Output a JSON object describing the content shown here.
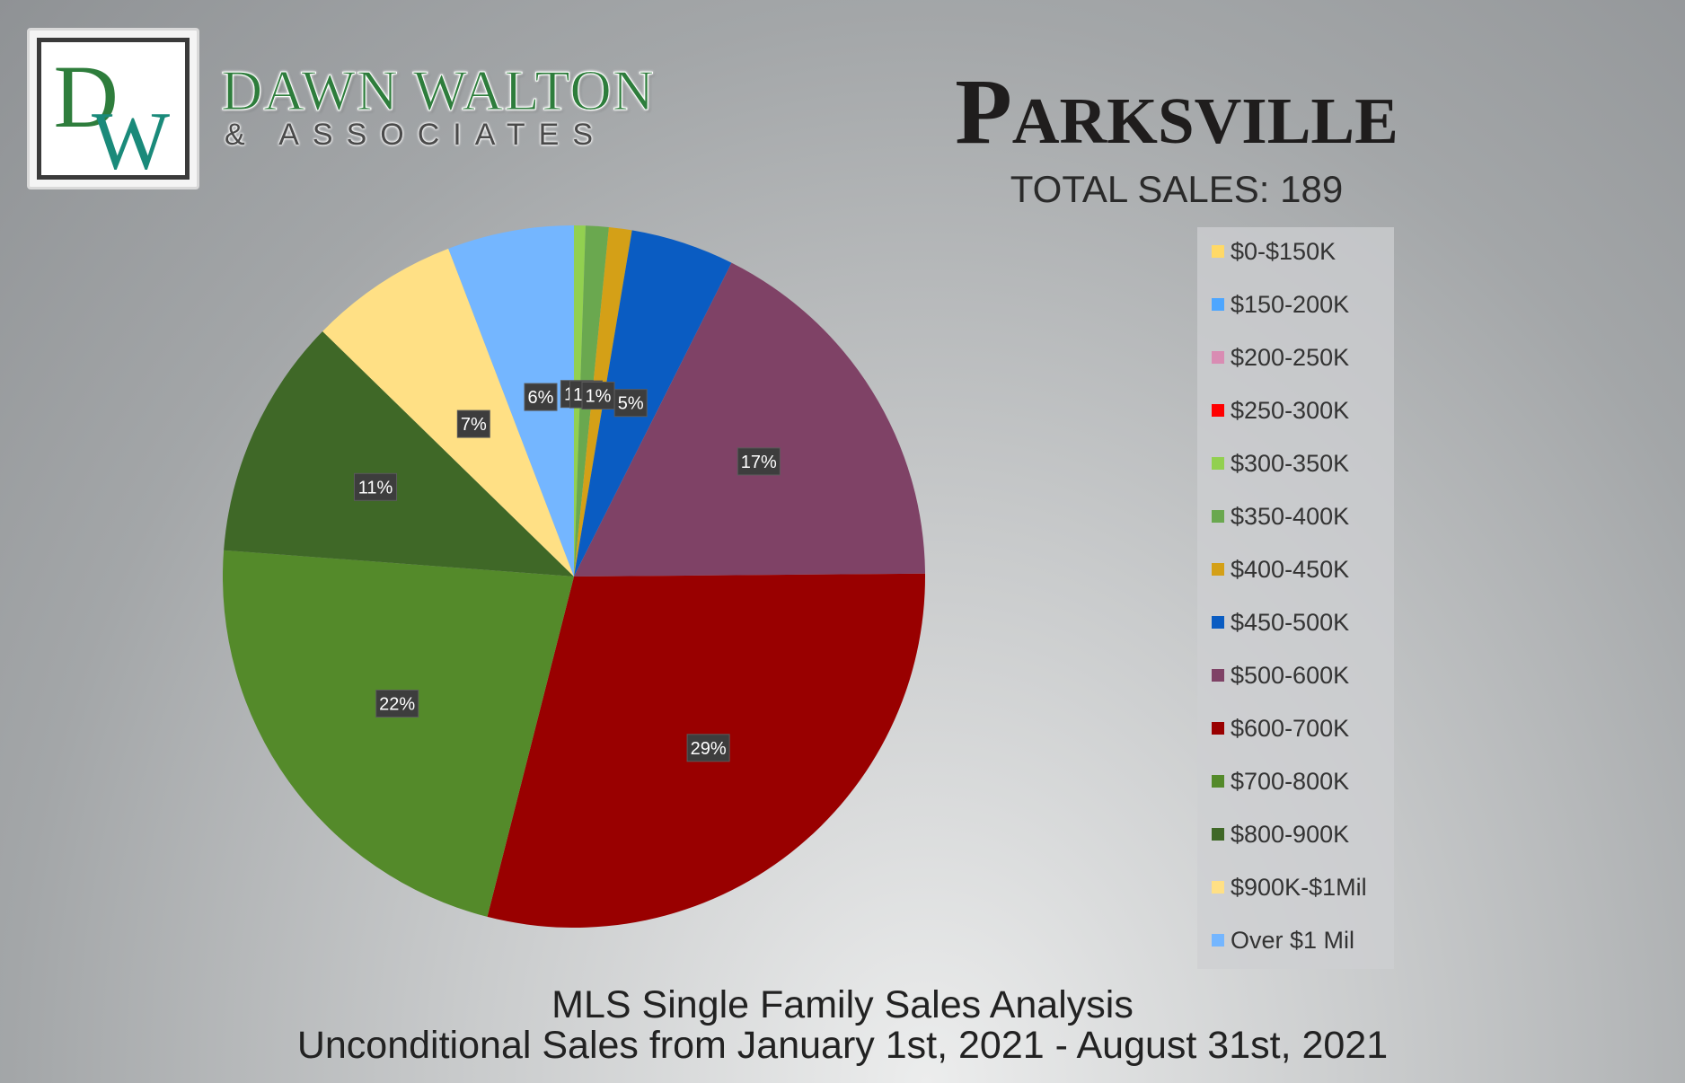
{
  "brand": {
    "monogram_d": "D",
    "monogram_w": "W",
    "name": "DAWN WALTON",
    "sub": "& ASSOCIATES",
    "colors": {
      "green": "#2e7d3c",
      "teal": "#1a8a7a"
    }
  },
  "header": {
    "title": "Parksville",
    "total_sales": "TOTAL SALES: 189"
  },
  "footer": {
    "line1": "MLS Single Family Sales Analysis",
    "line2": "Unconditional Sales from January 1st, 2021 - August 31st, 2021"
  },
  "legend": {
    "placement": "right",
    "items": [
      {
        "label": "$0-$150K",
        "color": "#ffd966"
      },
      {
        "label": "$150-200K",
        "color": "#4da6ff"
      },
      {
        "label": "$200-250K",
        "color": "#d98cb3"
      },
      {
        "label": "$250-300K",
        "color": "#ff0000"
      },
      {
        "label": "$300-350K",
        "color": "#92d050"
      },
      {
        "label": "$350-400K",
        "color": "#6aa84f"
      },
      {
        "label": "$400-450K",
        "color": "#d4a017"
      },
      {
        "label": "$450-500K",
        "color": "#0a5cc2"
      },
      {
        "label": "$500-600K",
        "color": "#7f4266"
      },
      {
        "label": "$600-700K",
        "color": "#990000"
      },
      {
        "label": "$700-800K",
        "color": "#548a2a"
      },
      {
        "label": "$800-900K",
        "color": "#3f6827"
      },
      {
        "label": "$900K-$1Mil",
        "color": "#ffe085"
      },
      {
        "label": "Over $1 Mil",
        "color": "#74b6ff"
      }
    ]
  },
  "chart_data": {
    "type": "pie",
    "title": "",
    "start_angle_deg": 0,
    "direction": "clockwise",
    "categories": [
      "$0-$150K",
      "$150-200K",
      "$200-250K",
      "$250-300K",
      "$300-350K",
      "$350-400K",
      "$400-450K",
      "$450-500K",
      "$500-600K",
      "$600-700K",
      "$700-800K",
      "$800-900K",
      "$900K-$1Mil",
      "Over $1 Mil"
    ],
    "values": [
      0,
      0,
      0,
      0,
      1,
      2,
      2,
      9,
      33,
      55,
      42,
      21,
      13,
      11
    ],
    "data_labels": [
      "",
      "",
      "",
      "",
      "1%",
      "1%",
      "1%",
      "5%",
      "17%",
      "29%",
      "22%",
      "11%",
      "7%",
      "6%"
    ],
    "colors": [
      "#ffd966",
      "#4da6ff",
      "#d98cb3",
      "#ff0000",
      "#92d050",
      "#6aa84f",
      "#d4a017",
      "#0a5cc2",
      "#7f4266",
      "#990000",
      "#548a2a",
      "#3f6827",
      "#ffe085",
      "#74b6ff"
    ]
  }
}
